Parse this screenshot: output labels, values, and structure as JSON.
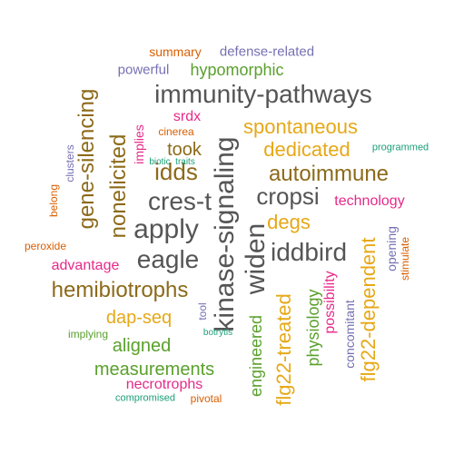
{
  "words": [
    {
      "text": "immunity-pathways",
      "color": "#555555"
    },
    {
      "text": "kinase-signaling",
      "color": "#555555"
    },
    {
      "text": "apply",
      "color": "#555555"
    },
    {
      "text": "cres-t",
      "color": "#555555"
    },
    {
      "text": "eagle",
      "color": "#555555"
    },
    {
      "text": "cropsi",
      "color": "#555555"
    },
    {
      "text": "widen",
      "color": "#555555"
    },
    {
      "text": "iddbird",
      "color": "#555555"
    },
    {
      "text": "idds",
      "color": "#8c6a1a"
    },
    {
      "text": "autoimmune",
      "color": "#8c6a1a"
    },
    {
      "text": "hemibiotrophs",
      "color": "#8c6a1a"
    },
    {
      "text": "gene-silencing",
      "color": "#8c6a1a"
    },
    {
      "text": "nonelicited",
      "color": "#8c6a1a"
    },
    {
      "text": "took",
      "color": "#8c6a1a"
    },
    {
      "text": "spontaneous",
      "color": "#e6a817"
    },
    {
      "text": "dedicated",
      "color": "#e6a817"
    },
    {
      "text": "degs",
      "color": "#e6a817"
    },
    {
      "text": "dap-seq",
      "color": "#e6a817"
    },
    {
      "text": "flg22-treated",
      "color": "#e6a817"
    },
    {
      "text": "flg22-dependent",
      "color": "#e6a817"
    },
    {
      "text": "hypomorphic",
      "color": "#5aa02c"
    },
    {
      "text": "aligned",
      "color": "#5aa02c"
    },
    {
      "text": "measurements",
      "color": "#5aa02c"
    },
    {
      "text": "engineered",
      "color": "#5aa02c"
    },
    {
      "text": "physiology",
      "color": "#5aa02c"
    },
    {
      "text": "implying",
      "color": "#5aa02c"
    },
    {
      "text": "srdx",
      "color": "#e7298a"
    },
    {
      "text": "implies",
      "color": "#e7298a"
    },
    {
      "text": "technology",
      "color": "#e7298a"
    },
    {
      "text": "advantage",
      "color": "#e7298a"
    },
    {
      "text": "possibility",
      "color": "#e7298a"
    },
    {
      "text": "necrotrophs",
      "color": "#e7298a"
    },
    {
      "text": "defense-related",
      "color": "#7570b3"
    },
    {
      "text": "powerful",
      "color": "#7570b3"
    },
    {
      "text": "clusters",
      "color": "#7570b3"
    },
    {
      "text": "opening",
      "color": "#7570b3"
    },
    {
      "text": "concomitant",
      "color": "#7570b3"
    },
    {
      "text": "tool",
      "color": "#7570b3"
    },
    {
      "text": "summary",
      "color": "#d95f02"
    },
    {
      "text": "cinerea",
      "color": "#d95f02"
    },
    {
      "text": "belong",
      "color": "#d95f02"
    },
    {
      "text": "peroxide",
      "color": "#d95f02"
    },
    {
      "text": "stimulate",
      "color": "#d95f02"
    },
    {
      "text": "pivotal",
      "color": "#d95f02"
    },
    {
      "text": "programmed",
      "color": "#1b9e77"
    },
    {
      "text": "biotic",
      "color": "#1b9e77"
    },
    {
      "text": "traits",
      "color": "#1b9e77"
    },
    {
      "text": "botrytis",
      "color": "#1b9e77"
    },
    {
      "text": "compromised",
      "color": "#1b9e77"
    }
  ]
}
